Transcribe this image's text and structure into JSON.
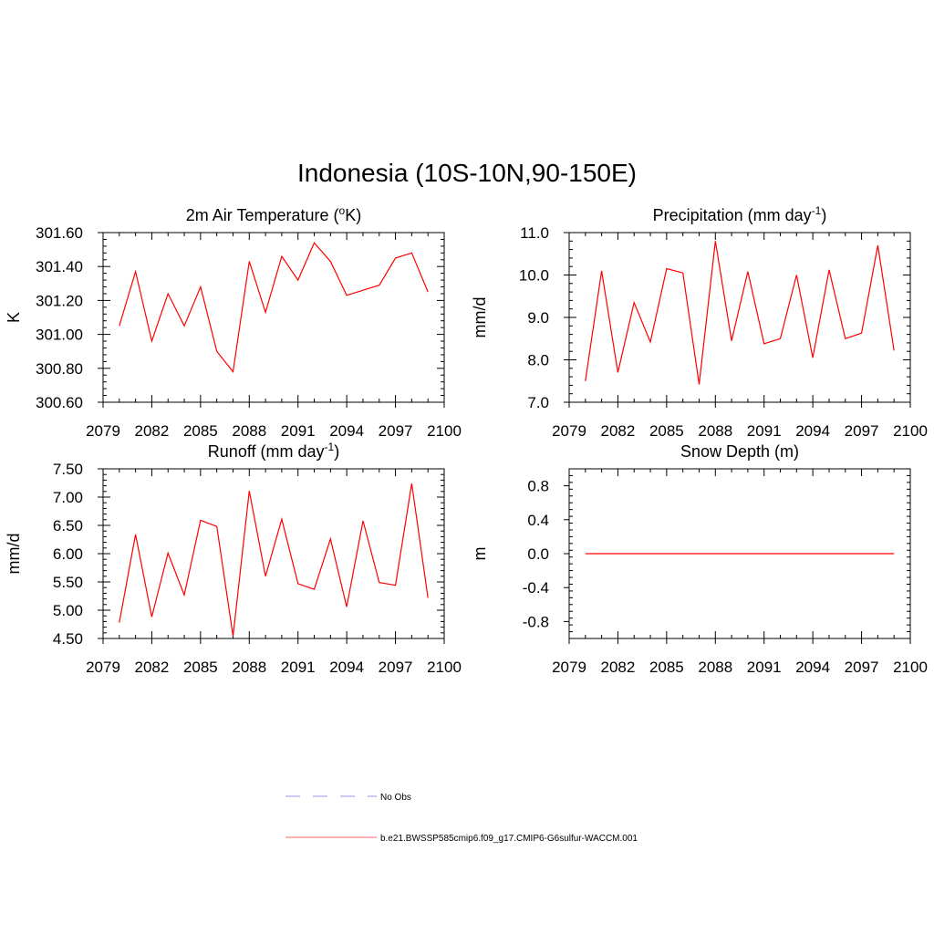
{
  "page": {
    "title": "Indonesia (10S-10N,90-150E)"
  },
  "chart_data": [
    {
      "type": "line",
      "title": "2m Air Temperature (",
      "title_sup": "o",
      "title_after": "K)",
      "ylabel": "K",
      "xlim": [
        2079,
        2100
      ],
      "ylim": [
        300.6,
        301.6
      ],
      "xticks": [
        "2079",
        "2082",
        "2085",
        "2088",
        "2091",
        "2094",
        "2097",
        "2100"
      ],
      "yticks": [
        "300.60",
        "300.80",
        "301.00",
        "301.20",
        "301.40",
        "301.60"
      ],
      "x": [
        2080,
        2081,
        2082,
        2083,
        2084,
        2085,
        2086,
        2087,
        2088,
        2089,
        2090,
        2091,
        2092,
        2093,
        2094,
        2095,
        2096,
        2097,
        2098,
        2099
      ],
      "series": [
        {
          "color": "#ff0000",
          "values": [
            301.05,
            301.37,
            300.96,
            301.24,
            301.05,
            301.28,
            300.9,
            300.78,
            301.43,
            301.13,
            301.46,
            301.32,
            301.54,
            301.43,
            301.23,
            301.26,
            301.29,
            301.45,
            301.48,
            301.25
          ]
        }
      ]
    },
    {
      "type": "line",
      "title": "Precipitation (mm day",
      "title_sup": "-1",
      "title_after": ")",
      "ylabel": "mm/d",
      "xlim": [
        2079,
        2100
      ],
      "ylim": [
        7.0,
        11.0
      ],
      "xticks": [
        "2079",
        "2082",
        "2085",
        "2088",
        "2091",
        "2094",
        "2097",
        "2100"
      ],
      "yticks": [
        "7.0",
        "8.0",
        "9.0",
        "10.0",
        "11.0"
      ],
      "x": [
        2080,
        2081,
        2082,
        2083,
        2084,
        2085,
        2086,
        2087,
        2088,
        2089,
        2090,
        2091,
        2092,
        2093,
        2094,
        2095,
        2096,
        2097,
        2098,
        2099
      ],
      "series": [
        {
          "color": "#ff0000",
          "values": [
            7.5,
            10.1,
            7.7,
            9.35,
            8.42,
            10.15,
            10.05,
            7.42,
            10.8,
            8.45,
            10.08,
            8.38,
            8.5,
            10.0,
            8.05,
            10.12,
            8.5,
            8.63,
            10.7,
            8.22
          ]
        }
      ]
    },
    {
      "type": "line",
      "title": "Runoff (mm day",
      "title_sup": "-1",
      "title_after": ")",
      "ylabel": "mm/d",
      "xlim": [
        2079,
        2100
      ],
      "ylim": [
        4.5,
        7.5
      ],
      "xticks": [
        "2079",
        "2082",
        "2085",
        "2088",
        "2091",
        "2094",
        "2097",
        "2100"
      ],
      "yticks": [
        "4.50",
        "5.00",
        "5.50",
        "6.00",
        "6.50",
        "7.00",
        "7.50"
      ],
      "x": [
        2080,
        2081,
        2082,
        2083,
        2084,
        2085,
        2086,
        2087,
        2088,
        2089,
        2090,
        2091,
        2092,
        2093,
        2094,
        2095,
        2096,
        2097,
        2098,
        2099
      ],
      "series": [
        {
          "color": "#ff0000",
          "values": [
            4.78,
            6.34,
            4.88,
            6.01,
            5.27,
            6.59,
            6.48,
            4.54,
            7.11,
            5.6,
            6.61,
            5.47,
            5.37,
            6.26,
            5.06,
            6.58,
            5.49,
            5.44,
            7.24,
            5.22
          ]
        }
      ]
    },
    {
      "type": "line",
      "title": "Snow Depth (m)",
      "title_sup": "",
      "title_after": "",
      "ylabel": "m",
      "xlim": [
        2079,
        2100
      ],
      "ylim": [
        -1.0,
        1.0
      ],
      "xticks": [
        "2079",
        "2082",
        "2085",
        "2088",
        "2091",
        "2094",
        "2097",
        "2100"
      ],
      "yticks": [
        "-0.8",
        "-0.4",
        "0.0",
        "0.4",
        "0.8"
      ],
      "ytick_values": [
        -0.8,
        -0.4,
        0.0,
        0.4,
        0.8
      ],
      "x": [
        2080,
        2081,
        2082,
        2083,
        2084,
        2085,
        2086,
        2087,
        2088,
        2089,
        2090,
        2091,
        2092,
        2093,
        2094,
        2095,
        2096,
        2097,
        2098,
        2099
      ],
      "series": [
        {
          "color": "#ff0000",
          "values": [
            0,
            0,
            0,
            0,
            0,
            0,
            0,
            0,
            0,
            0,
            0,
            0,
            0,
            0,
            0,
            0,
            0,
            0,
            0,
            0
          ]
        }
      ]
    }
  ],
  "legend": {
    "items": [
      {
        "label": "No Obs",
        "color": "#9999dd",
        "style": "dashed"
      },
      {
        "label": "b.e21.BWSSP585cmip6.f09_g17.CMIP6-G6sulfur-WACCM.001",
        "color": "#ff6666",
        "style": "solid"
      }
    ]
  }
}
